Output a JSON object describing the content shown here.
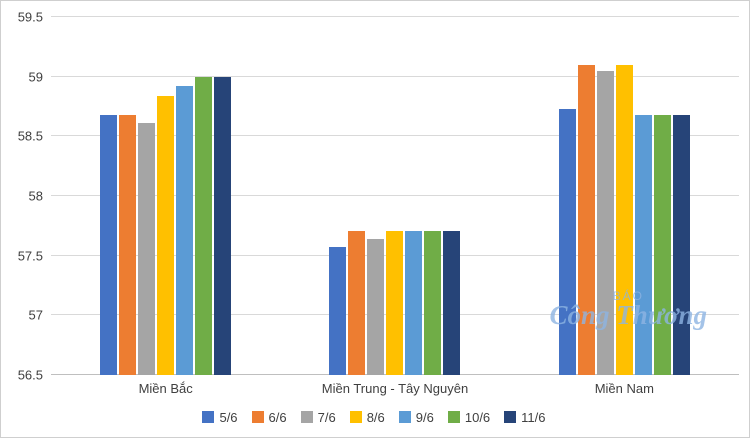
{
  "watermark": {
    "line1": "BÁO",
    "line2": "Công Thương"
  },
  "chart_data": {
    "type": "bar",
    "title": "",
    "xlabel": "",
    "ylabel": "",
    "categories": [
      "Miền Bắc",
      "Miền Trung - Tây Nguyên",
      "Miền Nam"
    ],
    "series": [
      {
        "name": "5/6",
        "color": "#4472C4",
        "values": [
          58.68,
          57.57,
          58.73
        ]
      },
      {
        "name": "6/6",
        "color": "#ED7D31",
        "values": [
          58.68,
          57.71,
          59.1
        ]
      },
      {
        "name": "7/6",
        "color": "#A5A5A5",
        "values": [
          58.61,
          57.64,
          59.05
        ]
      },
      {
        "name": "8/6",
        "color": "#FFC000",
        "values": [
          58.84,
          57.71,
          59.1
        ]
      },
      {
        "name": "9/6",
        "color": "#5B9BD5",
        "values": [
          58.92,
          57.71,
          58.68
        ]
      },
      {
        "name": "10/6",
        "color": "#70AD47",
        "values": [
          59.0,
          57.71,
          58.68
        ]
      },
      {
        "name": "11/6",
        "color": "#264478",
        "values": [
          59.0,
          57.71,
          58.68
        ]
      }
    ],
    "ylim": [
      56.5,
      59.5
    ],
    "yticks": [
      56.5,
      57,
      57.5,
      58,
      58.5,
      59,
      59.5
    ],
    "grid": true,
    "legend_position": "bottom"
  }
}
